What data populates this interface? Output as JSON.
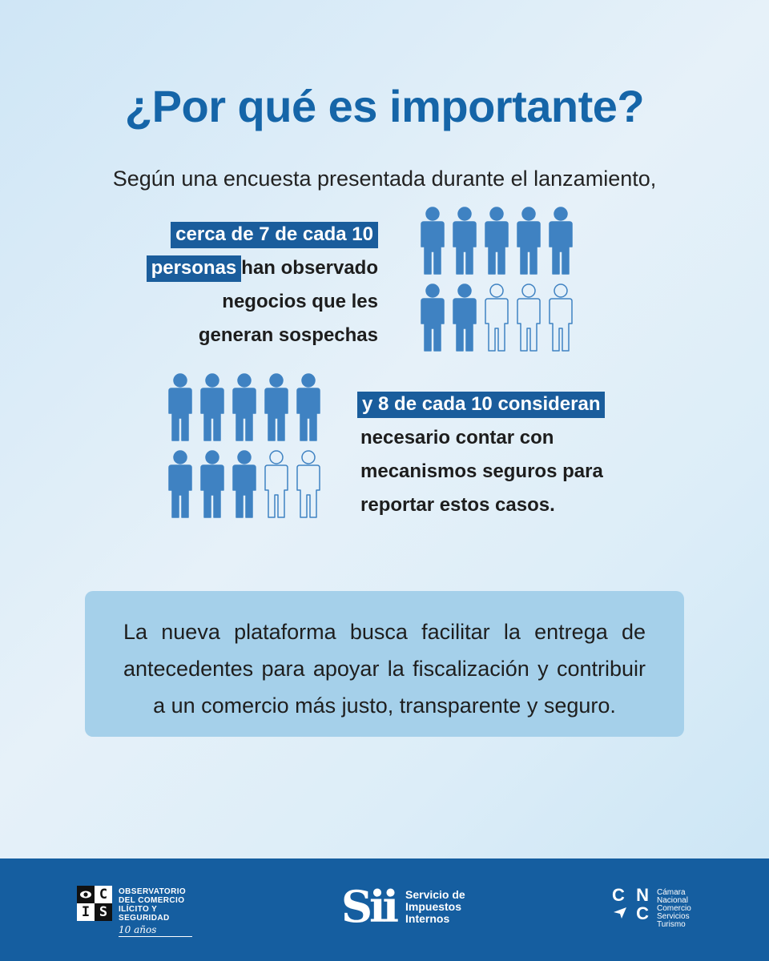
{
  "title": "¿Por qué es importante?",
  "intro": "Según una encuesta presentada durante el lanzamiento,",
  "stat1": {
    "highlight_line1": "cerca de 7 de cada 10",
    "highlight_line2": "personas",
    "rest_line2": "han observado",
    "line3": "negocios que les",
    "line4": "generan sospechas",
    "filled": 7,
    "total": 10
  },
  "stat2": {
    "highlight_line1": "y 8 de cada 10 consideran",
    "line2": "necesario contar con",
    "line3": "mecanismos seguros para",
    "line4": "reportar estos casos.",
    "filled": 8,
    "total": 10
  },
  "callout": "La nueva plataforma busca facilitar la entrega de antecedentes para apoyar la fiscalización y contribuir a un comercio más justo, transparente y seguro.",
  "footer": {
    "ocis": {
      "letters": [
        "C",
        "I",
        "S"
      ],
      "line1": "OBSERVATORIO",
      "line2": "DEL COMERCIO",
      "line3": "ILÍCITO Y",
      "line4": "SEGURIDAD",
      "years": "10 años"
    },
    "sii": {
      "mark": "Sii",
      "line1": "Servicio de",
      "line2": "Impuestos",
      "line3": "Internos"
    },
    "cnc": {
      "row1_a": "C",
      "row1_b": "N",
      "row2_b": "C",
      "line1": "Cámara",
      "line2": "Nacional",
      "line3": "Comercio",
      "line4": "Servicios",
      "line5": "Turismo"
    }
  },
  "colors": {
    "accent": "#1565a8",
    "highlight": "#1a5d9c",
    "person_filled": "#3f82c2",
    "person_outline": "#3f82c2",
    "footer": "#155ea0",
    "callout": "#a5d0ea"
  }
}
